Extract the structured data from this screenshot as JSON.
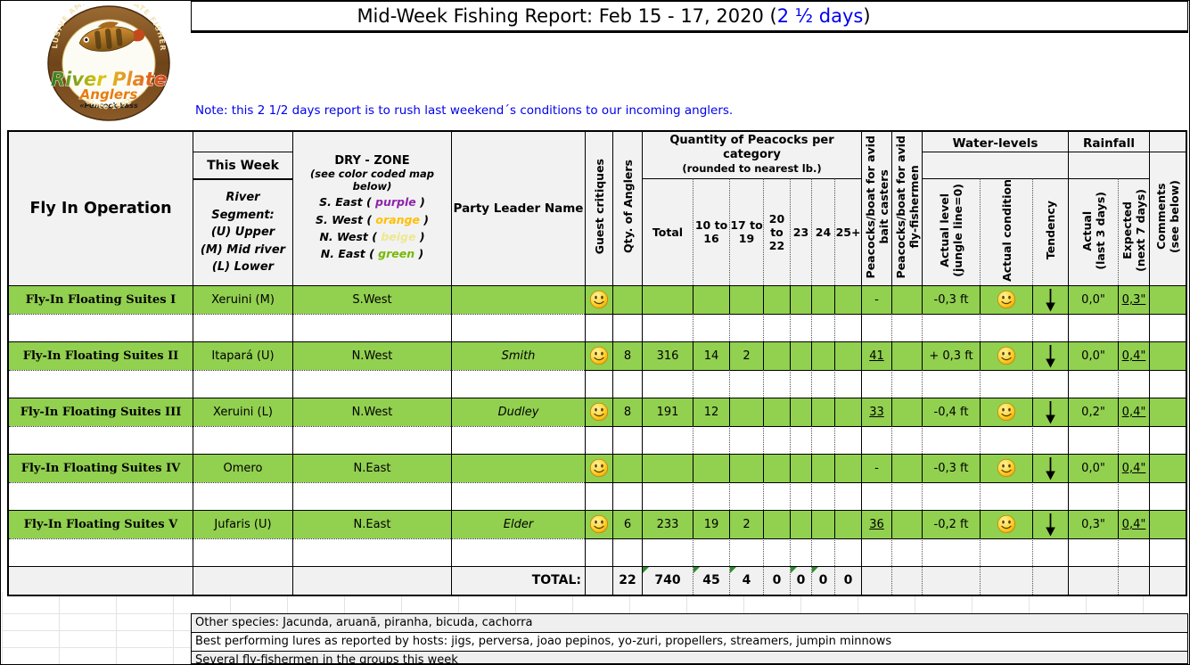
{
  "page": {
    "title_black": "Mid-Week Fishing Report: Feb 15 - 17, 2020 (",
    "title_blue": "2 ½ days",
    "title_close": ")",
    "note": "Note:  this 2 1/2 days report is to rush last weekend´s conditions to our incoming anglers."
  },
  "logo": {
    "arc_top": "EXCLUSIVE AMAZON PRIVATE FISHERIES",
    "name1": "River Plate",
    "name2": "Anglers",
    "tagline": "«Peacock bass",
    "since": "Since 1992"
  },
  "colors": {
    "row_green": "#92d050",
    "header_gray": "#f2f2f2",
    "note_blue": "#0000ee",
    "purple": "#8e24aa",
    "orange": "#ffc000",
    "beige": "#ede88f",
    "green": "#76b900"
  },
  "header": {
    "fly_in_operation": "Fly In Operation",
    "this_week": "This Week",
    "river_segment_lines": [
      "River Segment:",
      "(U) Upper",
      "(M) Mid river",
      "(L) Lower"
    ],
    "dry_zone_title": "DRY - ZONE",
    "dry_zone_sub": "(see color coded map below)",
    "dry_zone_items": [
      {
        "label": "S. East",
        "word": "purple",
        "color_key": "purple"
      },
      {
        "label": "S. West",
        "word": "orange",
        "color_key": "orange"
      },
      {
        "label": "N. West",
        "word": "beige",
        "color_key": "beige"
      },
      {
        "label": "N. East",
        "word": "green",
        "color_key": "green"
      }
    ],
    "party_leader": "Party Leader Name",
    "guest_critiques": "Guest critiques",
    "qty_anglers": "Qty. of Anglers",
    "peacocks_group_line1": "Quantity of Peacocks per category",
    "peacocks_group_line2": "(rounded to nearest lb.)",
    "peacock_cols": [
      "Total",
      "10 to 16",
      "17 to 19",
      "20 to 22",
      "23",
      "24",
      "25+"
    ],
    "bait_casters_line1": "Peacocks/boat for avid",
    "bait_casters_line2": "bait casters",
    "fly_fishermen_line1": "Peacocks/boat for avid",
    "fly_fishermen_line2": "fly-fishermen",
    "water_levels": "Water-levels",
    "water_col1_line1": "Actual level",
    "water_col1_line2": "(jungle line=0)",
    "water_col2": "Actual condition",
    "water_col3": "Tendency",
    "rainfall": "Rainfall",
    "rain_col1_line1": "Actual",
    "rain_col1_line2": "(last 3 days)",
    "rain_col2_line1": "Expected",
    "rain_col2_line2": "(next 7 days)",
    "comments_line1": "Comments",
    "comments_line2": "(see below)"
  },
  "rows": [
    {
      "name": "Fly-In Floating Suites I",
      "river": "Xeruini (M)",
      "zone": "S.West",
      "leader": "",
      "critique": true,
      "qty": "",
      "total": "",
      "c10_16": "",
      "c17_19": "",
      "c20_22": "",
      "c23": "",
      "c24": "",
      "c25": "",
      "bait": "-",
      "bait_u": false,
      "fly": "",
      "level": "-0,3 ft",
      "condition": true,
      "tendency": "down",
      "rain_actual": "0,0\"",
      "rain_expected": "0,3\"",
      "comments": ""
    },
    {
      "name": "Fly-In Floating Suites II",
      "river": "Itapará (U)",
      "zone": "N.West",
      "leader": "Smith",
      "critique": true,
      "qty": "8",
      "total": "316",
      "c10_16": "14",
      "c17_19": "2",
      "c20_22": "",
      "c23": "",
      "c24": "",
      "c25": "",
      "bait": "41",
      "bait_u": true,
      "fly": "",
      "level": "+ 0,3 ft",
      "condition": true,
      "tendency": "down",
      "rain_actual": "0,0\"",
      "rain_expected": "0,4\"",
      "comments": ""
    },
    {
      "name": "Fly-In Floating Suites III",
      "river": "Xeruini (L)",
      "zone": "N.West",
      "leader": "Dudley",
      "critique": true,
      "qty": "8",
      "total": "191",
      "c10_16": "12",
      "c17_19": "",
      "c20_22": "",
      "c23": "",
      "c24": "",
      "c25": "",
      "bait": "33",
      "bait_u": true,
      "fly": "",
      "level": "-0,4 ft",
      "condition": true,
      "tendency": "down",
      "rain_actual": "0,2\"",
      "rain_expected": "0,4\"",
      "comments": ""
    },
    {
      "name": "Fly-In Floating Suites IV",
      "river": "Omero",
      "zone": "N.East",
      "leader": "",
      "critique": true,
      "qty": "",
      "total": "",
      "c10_16": "",
      "c17_19": "",
      "c20_22": "",
      "c23": "",
      "c24": "",
      "c25": "",
      "bait": "-",
      "bait_u": false,
      "fly": "",
      "level": "-0,3 ft",
      "condition": true,
      "tendency": "down",
      "rain_actual": "0,0\"",
      "rain_expected": "0,4\"",
      "comments": ""
    },
    {
      "name": "Fly-In Floating Suites V",
      "river": "Jufaris (U)",
      "zone": "N.East",
      "leader": "Elder",
      "critique": true,
      "qty": "6",
      "total": "233",
      "c10_16": "19",
      "c17_19": "2",
      "c20_22": "",
      "c23": "",
      "c24": "",
      "c25": "",
      "bait": "36",
      "bait_u": true,
      "fly": "",
      "level": "-0,2 ft",
      "condition": true,
      "tendency": "down",
      "rain_actual": "0,3\"",
      "rain_expected": "0,4\"",
      "comments": ""
    }
  ],
  "totals": {
    "label": "TOTAL:",
    "qty": "22",
    "values": [
      "740",
      "45",
      "4",
      "0",
      "0",
      "0",
      "0"
    ],
    "indicators": [
      true,
      true,
      true,
      false,
      true,
      true,
      false
    ]
  },
  "notes": [
    "Other species: Jacunda, aruanã, piranha,  bicuda, cachorra",
    "Best performing lures as reported by hosts:  jigs, perversa, joao pepinos, yo-zuri, propellers, streamers, jumpin minnows",
    "Several fly-fishermen in the groups this week"
  ]
}
